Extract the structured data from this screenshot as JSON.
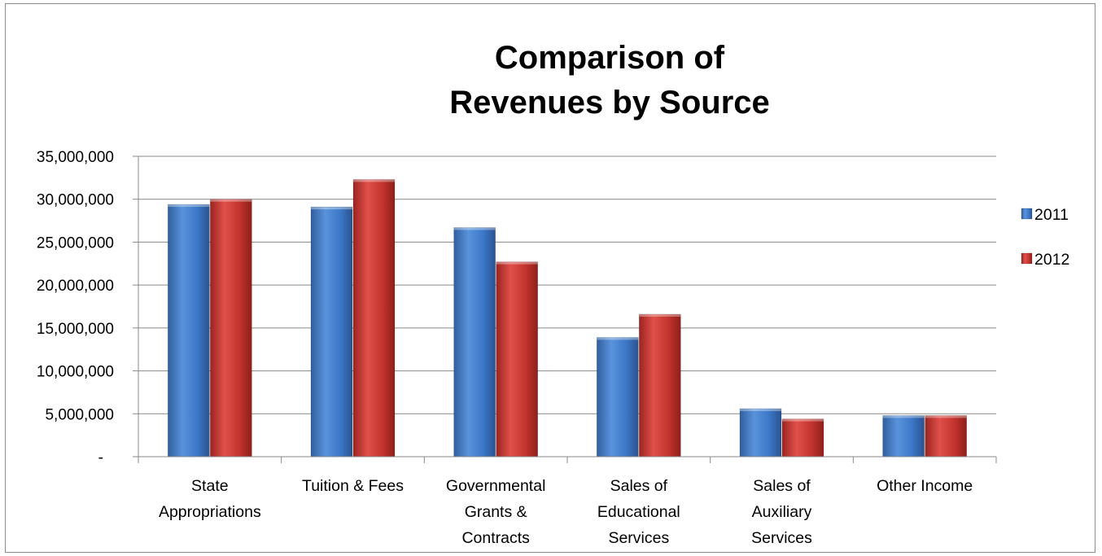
{
  "chart_data": {
    "type": "bar",
    "title": [
      "Comparison of",
      "Revenues by Source"
    ],
    "categories": [
      [
        "State",
        "Appropriations"
      ],
      [
        "Tuition & Fees"
      ],
      [
        "Governmental",
        "Grants &",
        "Contracts"
      ],
      [
        "Sales of",
        "Educational",
        "Services"
      ],
      [
        "Sales of",
        "Auxiliary",
        "Services"
      ],
      [
        "Other Income"
      ]
    ],
    "series": [
      {
        "name": "2011",
        "color": "#3a73c4",
        "values": [
          29400000,
          29100000,
          26700000,
          13900000,
          5600000,
          4800000
        ]
      },
      {
        "name": "2012",
        "color": "#c0302a",
        "values": [
          30000000,
          32300000,
          22700000,
          16600000,
          4400000,
          4800000
        ]
      }
    ],
    "ylim": [
      0,
      35000000
    ],
    "yticks": [
      0,
      5000000,
      10000000,
      15000000,
      20000000,
      25000000,
      30000000,
      35000000
    ],
    "ytick_labels": [
      "-",
      "5,000,000",
      "10,000,000",
      "15,000,000",
      "20,000,000",
      "25,000,000",
      "30,000,000",
      "35,000,000"
    ],
    "grid": true,
    "legend_position": "right",
    "xlabel": "",
    "ylabel": ""
  }
}
